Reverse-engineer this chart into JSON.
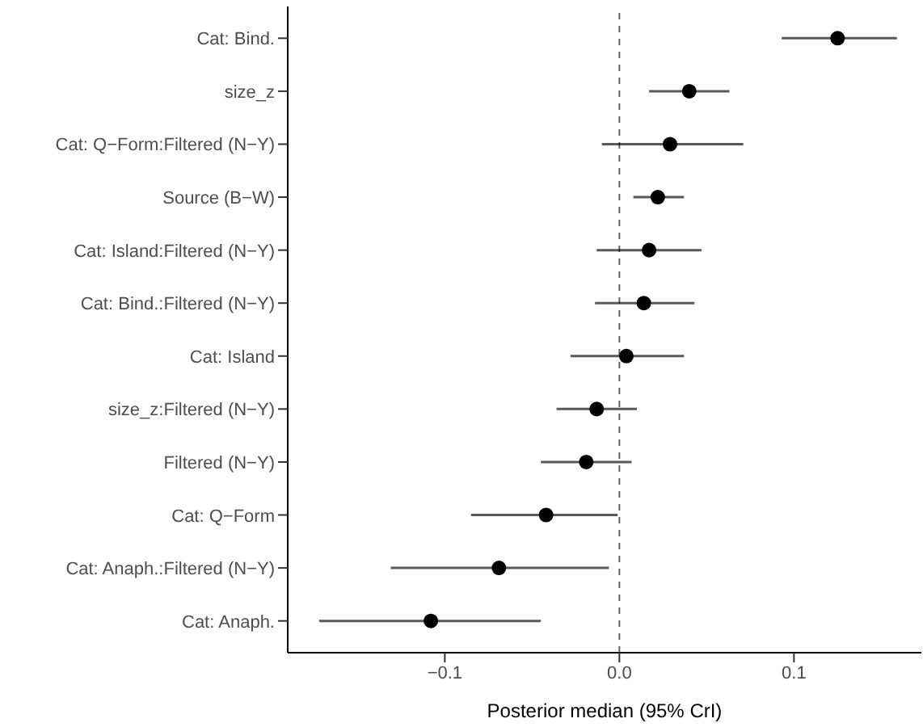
{
  "chart_data": {
    "type": "scatter",
    "orientation": "horizontal",
    "xlabel": "Posterior median (95% CrI)",
    "categories": [
      "Cat: Bind.",
      "size_z",
      "Cat: Q−Form:Filtered (N−Y)",
      "Source (B−W)",
      "Cat: Island:Filtered (N−Y)",
      "Cat: Bind.:Filtered (N−Y)",
      "Cat: Island",
      "size_z:Filtered (N−Y)",
      "Filtered (N−Y)",
      "Cat: Q−Form",
      "Cat: Anaph.:Filtered (N−Y)",
      "Cat: Anaph."
    ],
    "values": [
      0.125,
      0.04,
      0.029,
      0.022,
      0.017,
      0.014,
      0.004,
      -0.013,
      -0.019,
      -0.042,
      -0.069,
      -0.108
    ],
    "errors": [
      [
        0.093,
        0.159
      ],
      [
        0.017,
        0.063
      ],
      [
        -0.01,
        0.071
      ],
      [
        0.008,
        0.037
      ],
      [
        -0.013,
        0.047
      ],
      [
        -0.014,
        0.043
      ],
      [
        -0.028,
        0.037
      ],
      [
        -0.036,
        0.01
      ],
      [
        -0.045,
        0.007
      ],
      [
        -0.085,
        -0.001
      ],
      [
        -0.131,
        -0.006
      ],
      [
        -0.172,
        -0.045
      ]
    ],
    "color": "#000000",
    "marker": "circle",
    "grid": false,
    "xlim": [
      -0.19,
      0.173
    ],
    "xticks": [
      {
        "value": -0.1,
        "label": "−0.1"
      },
      {
        "value": 0,
        "label": "0.0"
      },
      {
        "value": 0.1,
        "label": "0.1"
      }
    ],
    "ref_lines": [
      {
        "axis": "x",
        "value": 0,
        "color": "#666666",
        "line_style": "dashed"
      }
    ]
  }
}
